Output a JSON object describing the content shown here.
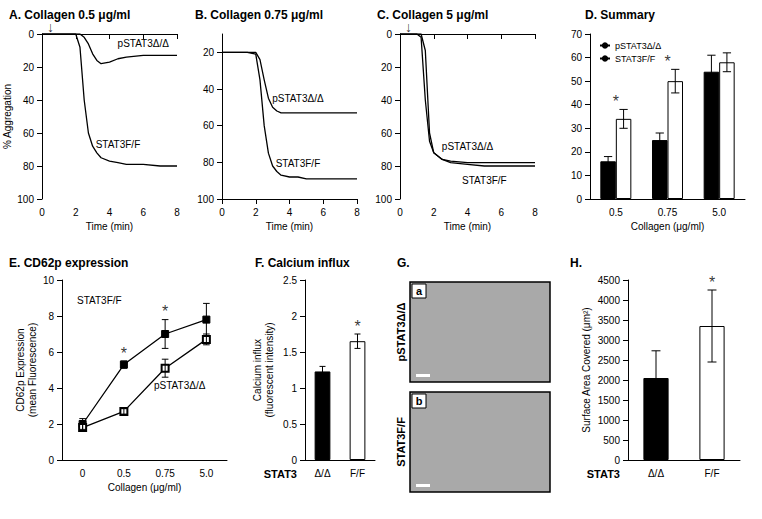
{
  "chart_data": [
    {
      "type": "line",
      "title": "A. Collagen 0.5 μg/ml",
      "x_label": "Time (min)",
      "y_label": "% Aggregation",
      "x": [
        0,
        0.5,
        1,
        1.5,
        2,
        2.25,
        2.5,
        2.75,
        3,
        3.25,
        3.5,
        4,
        4.5,
        5,
        6,
        7,
        8
      ],
      "series": [
        {
          "name": "pSTAT3Δ/Δ",
          "color": "#000000",
          "values": [
            0,
            0,
            0,
            0,
            0,
            0,
            2,
            6,
            12,
            16,
            18,
            17,
            15,
            14,
            13,
            13,
            13
          ]
        },
        {
          "name": "STAT3F/F",
          "color": "#000000",
          "values": [
            0,
            0,
            0,
            0,
            0,
            8,
            40,
            60,
            68,
            72,
            75,
            77,
            78,
            79,
            79,
            80,
            80
          ]
        }
      ],
      "xlim": [
        0,
        8
      ],
      "xticks": [
        0,
        2,
        4,
        6,
        8
      ],
      "ylim": [
        100,
        0
      ],
      "yticks": [
        0,
        20,
        40,
        60,
        80,
        100
      ],
      "annotations": [
        {
          "text": "↓",
          "x": 0.5
        }
      ],
      "grid": false
    },
    {
      "type": "line",
      "title": "B. Collagen 0.75 μg/ml",
      "x_label": "Time (min)",
      "x": [
        0,
        0.5,
        1,
        1.5,
        2,
        2.25,
        2.5,
        2.75,
        3,
        3.25,
        3.5,
        4,
        4.5,
        5,
        6,
        7,
        8
      ],
      "series": [
        {
          "name": "pSTAT3Δ/Δ",
          "color": "#000000",
          "values": [
            20,
            20,
            20,
            20,
            20,
            24,
            35,
            45,
            50,
            52,
            53,
            53,
            53,
            53,
            53,
            53,
            53
          ]
        },
        {
          "name": "STAT3F/F",
          "color": "#000000",
          "values": [
            20,
            20,
            20,
            20,
            21,
            35,
            60,
            75,
            82,
            85,
            87,
            88,
            88,
            89,
            89,
            89,
            89
          ]
        }
      ],
      "xlim": [
        0,
        8
      ],
      "xticks": [
        0,
        2,
        4,
        6,
        8
      ],
      "ylim": [
        100,
        10
      ],
      "yticks": [
        20,
        40,
        60,
        80,
        100
      ],
      "grid": false
    },
    {
      "type": "line",
      "title": "C. Collagen 5 μg/ml",
      "x_label": "Time (min)",
      "x": [
        0,
        0.5,
        1,
        1.25,
        1.5,
        1.75,
        2,
        2.5,
        3,
        4,
        5,
        6,
        7,
        8
      ],
      "series": [
        {
          "name": "pSTAT3Δ/Δ",
          "color": "#000000",
          "values": [
            0,
            0,
            0,
            0,
            10,
            60,
            72,
            76,
            77,
            78,
            78,
            78,
            78,
            78
          ]
        },
        {
          "name": "STAT3F/F",
          "color": "#000000",
          "values": [
            0,
            0,
            0,
            2,
            40,
            65,
            72,
            76,
            78,
            79,
            80,
            80,
            80,
            80
          ]
        }
      ],
      "xlim": [
        0,
        8
      ],
      "xticks": [
        0,
        2,
        4,
        6,
        8
      ],
      "ylim": [
        100,
        0
      ],
      "yticks": [
        0,
        20,
        40,
        60,
        80,
        100
      ],
      "annotations": [
        {
          "text": "↓",
          "x": 0.5
        }
      ],
      "grid": false
    },
    {
      "type": "bar",
      "title": "D. Summary",
      "x_label": "Collagen (μg/ml)",
      "categories": [
        "0.5",
        "0.75",
        "5.0"
      ],
      "series": [
        {
          "name": "pSTAT3Δ/Δ",
          "color": "#000000",
          "values": [
            16,
            25,
            54
          ],
          "errors": [
            2,
            3,
            7
          ]
        },
        {
          "name": "STAT3F/F",
          "color": "#ffffff",
          "values": [
            34,
            50,
            58
          ],
          "errors": [
            4,
            5,
            4
          ]
        }
      ],
      "ylim": [
        0,
        70
      ],
      "yticks": [
        0,
        10,
        20,
        30,
        40,
        50,
        60,
        70
      ],
      "legend": "upper left",
      "grid": false,
      "annotations": [
        {
          "text": "*",
          "category": "0.5"
        },
        {
          "text": "*",
          "category": "0.75"
        }
      ]
    },
    {
      "type": "line",
      "title": "E. CD62p expression",
      "x_label": "Collagen (μg/ml)",
      "y_label": "CD62p Expression\n(mean Fluorescence)",
      "categories": [
        "0",
        "0.5",
        "0.75",
        "5.0"
      ],
      "series": [
        {
          "name": "STAT3F/F",
          "color": "#000000",
          "marker": "square",
          "values": [
            2.0,
            5.3,
            7.0,
            7.8
          ],
          "errors": [
            0.3,
            0.2,
            0.8,
            0.9
          ]
        },
        {
          "name": "pSTAT3Δ/Δ",
          "color": "#000000",
          "marker": "open-square",
          "values": [
            1.8,
            2.7,
            5.1,
            6.7
          ],
          "errors": [
            0.2,
            0.15,
            0.5,
            0.3
          ]
        }
      ],
      "ylim": [
        0,
        10
      ],
      "yticks": [
        0,
        2,
        4,
        6,
        8,
        10
      ],
      "grid": false,
      "annotations": [
        {
          "text": "*",
          "category": "0.5"
        },
        {
          "text": "*",
          "category": "0.75"
        }
      ]
    },
    {
      "type": "bar",
      "title": "F. Calcium influx",
      "x_label": "STAT3",
      "y_label": "Calcium influx\n(fluorescent intensity)",
      "categories": [
        "Δ/Δ",
        "F/F"
      ],
      "values": [
        1.23,
        1.65
      ],
      "errors": [
        0.07,
        0.1
      ],
      "colors": [
        "#000000",
        "#ffffff"
      ],
      "ylim": [
        0,
        2.5
      ],
      "yticks": [
        0,
        0.5,
        1,
        1.5,
        2,
        2.5
      ],
      "grid": false,
      "annotations": [
        {
          "text": "*",
          "category": "F/F"
        }
      ]
    },
    {
      "type": "image",
      "title": "G.",
      "panels": [
        {
          "label": "a",
          "row_label": "pSTAT3Δ/Δ"
        },
        {
          "label": "b",
          "row_label": "STAT3F/F"
        }
      ]
    },
    {
      "type": "bar",
      "title": "H.",
      "x_label": "STAT3",
      "y_label": "Surface Area Covered (μm²)",
      "categories": [
        "Δ/Δ",
        "F/F"
      ],
      "values": [
        2050,
        3350
      ],
      "errors": [
        680,
        900
      ],
      "colors": [
        "#000000",
        "#ffffff"
      ],
      "ylim": [
        0,
        4500
      ],
      "yticks": [
        0,
        500,
        1000,
        1500,
        2000,
        2500,
        3000,
        3500,
        4000,
        4500
      ],
      "grid": false,
      "annotations": [
        {
          "text": "*",
          "category": "F/F"
        }
      ]
    }
  ]
}
